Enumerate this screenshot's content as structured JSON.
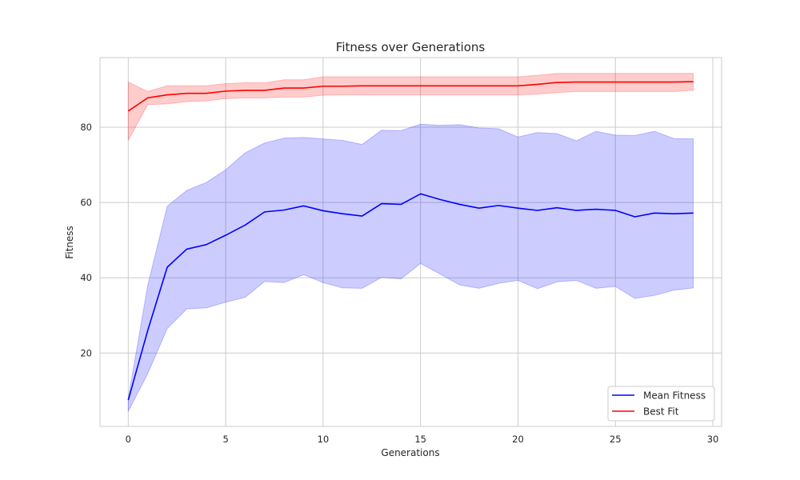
{
  "chart_data": {
    "type": "line",
    "title": "Fitness over Generations",
    "xlabel": "Generations",
    "ylabel": "Fitness",
    "xlim": [
      -1.45,
      30.45
    ],
    "ylim": [
      0.5,
      98.5
    ],
    "xticks": [
      0,
      5,
      10,
      15,
      20,
      25,
      30
    ],
    "yticks": [
      20,
      40,
      60,
      80
    ],
    "grid": true,
    "legend_position": "lower-right",
    "x": [
      0,
      1,
      2,
      3,
      4,
      5,
      6,
      7,
      8,
      9,
      10,
      11,
      12,
      13,
      14,
      15,
      16,
      17,
      18,
      19,
      20,
      21,
      22,
      23,
      24,
      25,
      26,
      27,
      28,
      29
    ],
    "series": [
      {
        "name": "Mean Fitness",
        "color": "#0000ff",
        "band_color": "#0000ff",
        "values": [
          7.5,
          26,
          42.8,
          47.6,
          48.8,
          51.3,
          54,
          57.5,
          58,
          59.1,
          57.8,
          57,
          56.4,
          59.7,
          59.5,
          62.3,
          60.8,
          59.5,
          58.5,
          59.2,
          58.5,
          57.9,
          58.6,
          57.9,
          58.2,
          57.9,
          56.2,
          57.2,
          57,
          57.2
        ],
        "lower": [
          4.5,
          14.5,
          26.5,
          31.7,
          32,
          33.5,
          34.8,
          39,
          38.7,
          40.8,
          38.7,
          37.3,
          37.2,
          40.1,
          39.7,
          43.8,
          41,
          38.1,
          37.2,
          38.5,
          39.3,
          37.1,
          38.9,
          39.3,
          37.2,
          37.7,
          34.5,
          35.3,
          36.7,
          37.3
        ],
        "upper": [
          8,
          38,
          59,
          63.2,
          65.3,
          68.7,
          73.2,
          75.8,
          77.1,
          77.3,
          76.9,
          76.5,
          75.4,
          79.2,
          79.1,
          80.8,
          80.5,
          80.7,
          79.8,
          79.6,
          77.4,
          78.6,
          78.3,
          76.4,
          78.9,
          77.9,
          77.8,
          78.9,
          77,
          76.9
        ]
      },
      {
        "name": "Best Fit",
        "color": "#ff0000",
        "band_color": "#ff0000",
        "values": [
          84.3,
          87.8,
          88.6,
          89,
          89,
          89.6,
          89.8,
          89.8,
          90.4,
          90.4,
          90.9,
          90.9,
          91,
          91,
          91,
          91,
          91,
          91,
          91,
          91,
          91,
          91.4,
          91.9,
          92,
          92,
          92,
          92,
          92,
          92,
          92.1
        ],
        "lower": [
          76.5,
          86,
          86.2,
          86.8,
          87,
          87.6,
          87.8,
          87.8,
          88,
          88,
          88.5,
          88.6,
          88.6,
          88.6,
          88.6,
          88.6,
          88.6,
          88.6,
          88.6,
          88.6,
          88.6,
          88.8,
          89.2,
          89.5,
          89.5,
          89.5,
          89.5,
          89.5,
          89.5,
          89.8
        ],
        "upper": [
          92,
          89.5,
          91,
          91,
          91,
          91.6,
          91.8,
          91.8,
          92.6,
          92.6,
          93.4,
          93.4,
          93.4,
          93.4,
          93.4,
          93.4,
          93.4,
          93.4,
          93.4,
          93.4,
          93.4,
          93.8,
          94.3,
          94.3,
          94.3,
          94.3,
          94.3,
          94.3,
          94.3,
          94.3
        ]
      }
    ]
  }
}
